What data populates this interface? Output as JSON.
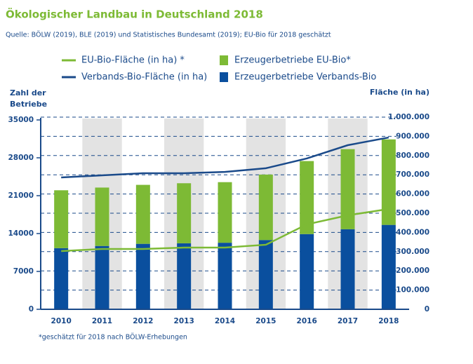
{
  "chart_data": {
    "type": "bar",
    "title": "Ökologischer Landbau in Deutschland 2018",
    "subtitle": "Quelle: BÖLW (2019), BLE (2019) und Statistisches Bundesamt (2019); EU-Bio für 2018 geschätzt",
    "y_label": "Zahl der Betriebe",
    "y2_label": "Fläche (in ha)",
    "footnote": "*geschätzt für 2018 nach BÖLW-Erhebungen",
    "categories": [
      "2010",
      "2011",
      "2012",
      "2013",
      "2014",
      "2015",
      "2016",
      "2017",
      "2018"
    ],
    "series": [
      {
        "name": "Erzeugerbetriebe Verbands-Bio",
        "type": "bar",
        "color": "#0a4f9e",
        "values": [
          11300,
          11700,
          12100,
          12200,
          12300,
          12800,
          13900,
          14800,
          15600
        ]
      },
      {
        "name": "Erzeugerbetriebe EU-Bio*",
        "type": "bar",
        "color": "#7dba35",
        "values": [
          10700,
          10800,
          10900,
          11100,
          11200,
          12100,
          13500,
          14800,
          15800
        ]
      },
      {
        "name": "EU-Bio-Fläche (in ha) *",
        "type": "line",
        "axis": "y2",
        "color": "#7dba35",
        "values": [
          303000,
          314000,
          314000,
          321000,
          321000,
          336000,
          442000,
          489000,
          522000
        ]
      },
      {
        "name": "Verbands-Bio-Fläche (in ha)",
        "type": "line",
        "axis": "y2",
        "color": "#1a4a8a",
        "values": [
          686000,
          697000,
          708000,
          708000,
          715000,
          734000,
          785000,
          854000,
          894000
        ]
      }
    ],
    "ylim": [
      0,
      35000
    ],
    "yticks": [
      0,
      7000,
      14000,
      21000,
      28000,
      35000
    ],
    "y2lim": [
      0,
      1000000
    ],
    "y2ticks": [
      0,
      {
        "value": 100000,
        "label": "100.000"
      },
      {
        "value": 200000,
        "label": "200.000"
      },
      {
        "value": 300000,
        "label": "300.000"
      },
      {
        "value": 400000,
        "label": "400.000"
      },
      {
        "value": 500000,
        "label": "500.000"
      },
      {
        "value": 600000,
        "label": "600.000"
      },
      {
        "value": 700000,
        "label": "700.000"
      },
      {
        "value": 800000,
        "label": "800.000"
      },
      {
        "value": 900000,
        "label": "900.000"
      },
      {
        "value": 1000000,
        "label": "1.000.000"
      }
    ],
    "grid": true
  }
}
